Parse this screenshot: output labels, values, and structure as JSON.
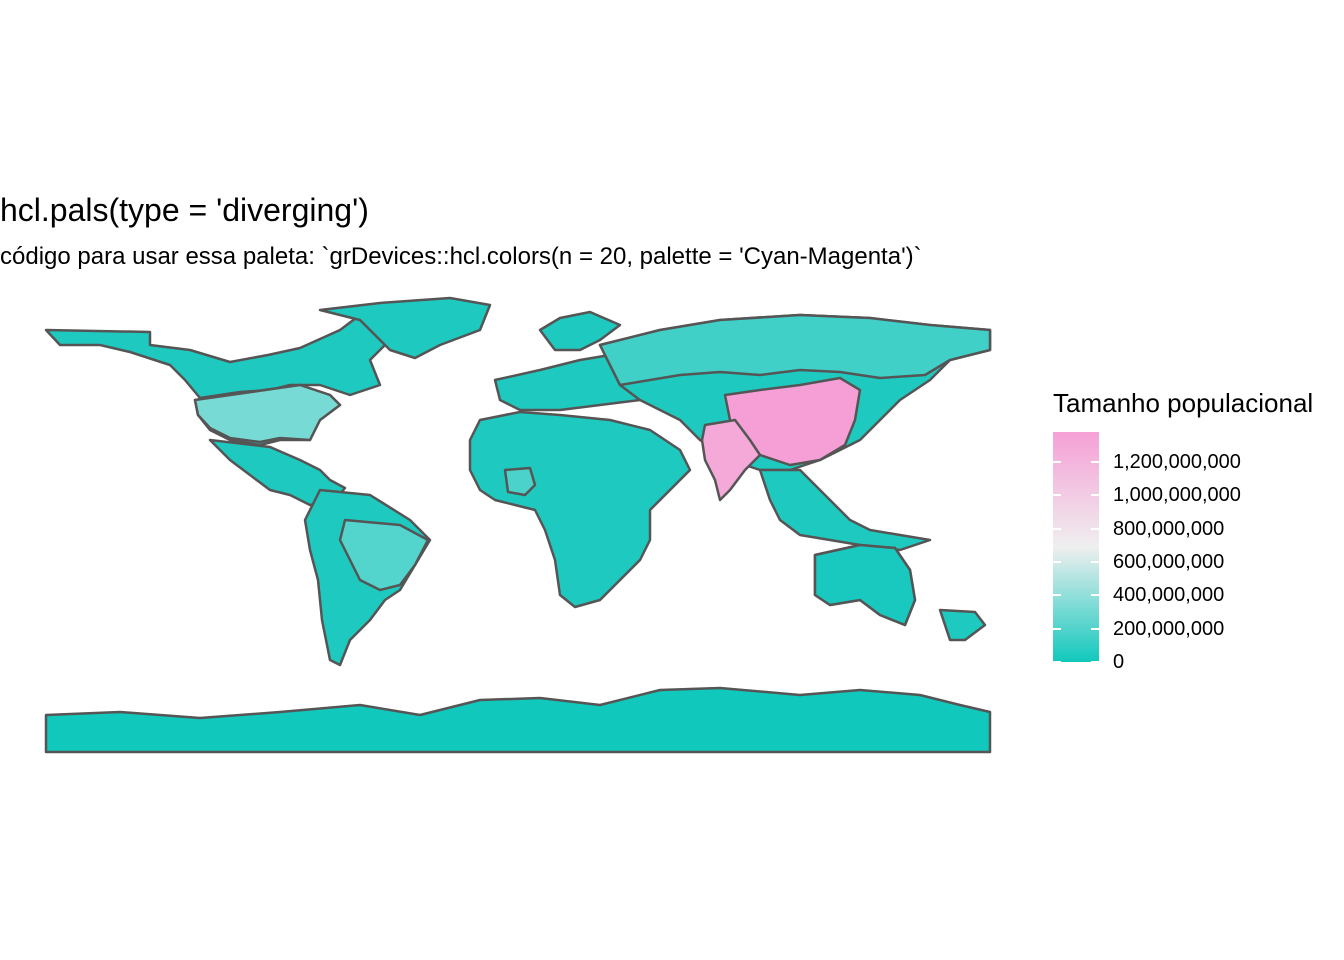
{
  "title": "hcl.pals(type = 'diverging')",
  "subtitle": "código para usar essa paleta: `grDevices::hcl.colors(n = 20, palette = 'Cyan-Magenta')`",
  "legend": {
    "title": "Tamanho populacional",
    "ticks": [
      {
        "label": "1,200,000,000",
        "value": 1200000000
      },
      {
        "label": "1,000,000,000",
        "value": 1000000000
      },
      {
        "label": "800,000,000",
        "value": 800000000
      },
      {
        "label": "600,000,000",
        "value": 600000000
      },
      {
        "label": "400,000,000",
        "value": 400000000
      },
      {
        "label": "200,000,000",
        "value": 200000000
      },
      {
        "label": "0",
        "value": 0
      }
    ],
    "range": [
      0,
      1380000000
    ],
    "colors": {
      "low": "#11C8BD",
      "mid": "#EFEFEF",
      "high": "#F5A0D6"
    }
  },
  "map": {
    "border_color": "#555555",
    "regions": [
      {
        "name": "China",
        "value": 1390000000
      },
      {
        "name": "India",
        "value": 1300000000
      },
      {
        "name": "United States",
        "value": 320000000
      },
      {
        "name": "Brazil",
        "value": 205000000
      },
      {
        "name": "Russia",
        "value": 145000000
      },
      {
        "name": "Nigeria",
        "value": 180000000
      },
      {
        "name": "Australia",
        "value": 24000000
      },
      {
        "name": "Antarctica",
        "value": 0
      }
    ]
  }
}
